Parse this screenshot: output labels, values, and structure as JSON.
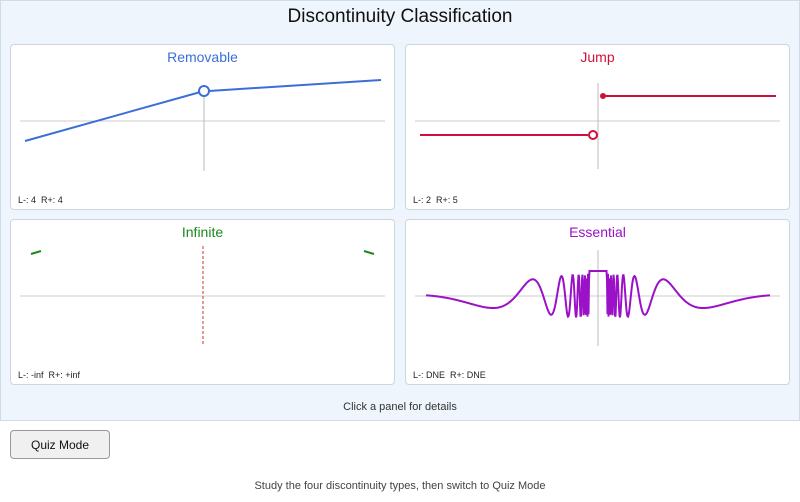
{
  "header": {
    "title": "Discontinuity Classification"
  },
  "panels": [
    {
      "title": "Removable",
      "limits": "L-: 4  R+: 4"
    },
    {
      "title": "Jump",
      "limits": "L-: 2  R+: 5"
    },
    {
      "title": "Infinite",
      "limits": "L-: -inf  R+: +inf"
    },
    {
      "title": "Essential",
      "limits": "L-: DNE  R+: DNE"
    }
  ],
  "hint": "Click a panel for details",
  "button": {
    "label": "Quiz Mode"
  },
  "footer": "Study the four discontinuity types, then switch to Quiz Mode"
}
